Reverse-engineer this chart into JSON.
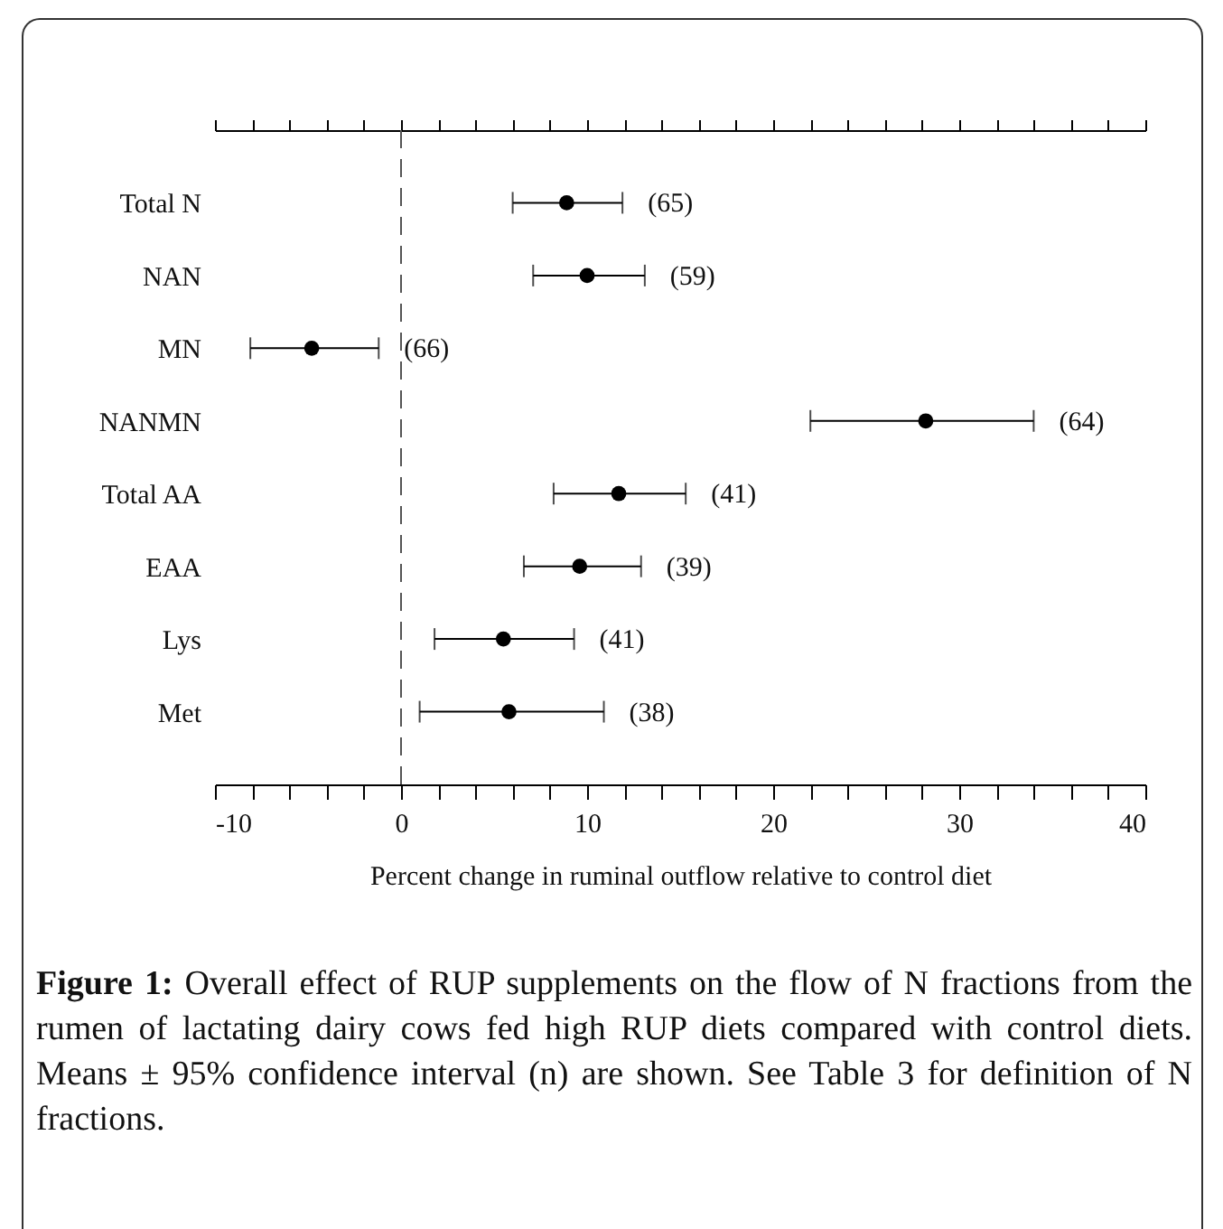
{
  "chart_data": {
    "type": "scatter",
    "categories": [
      "Total N",
      "NAN",
      "MN",
      "NANMN",
      "Total AA",
      "EAA",
      "Lys",
      "Met"
    ],
    "values": [
      8.9,
      10.0,
      -4.8,
      28.2,
      11.7,
      9.6,
      5.5,
      5.8
    ],
    "errors": [
      [
        6.0,
        11.9
      ],
      [
        7.1,
        13.1
      ],
      [
        -8.1,
        -1.2
      ],
      [
        22.0,
        34.0
      ],
      [
        8.2,
        15.3
      ],
      [
        6.6,
        12.9
      ],
      [
        1.8,
        9.3
      ],
      [
        1.0,
        10.9
      ]
    ],
    "orientation": "horizontal",
    "color": "#000000",
    "marker": "circle",
    "xlabel": "Percent change in ruminal outflow relative to control diet",
    "xlim": [
      -10,
      40
    ],
    "xticks": [
      -10,
      {
        "value": -8,
        "label": null
      },
      {
        "value": -6,
        "label": null
      },
      {
        "value": -4,
        "label": null
      },
      {
        "value": -2,
        "label": null
      },
      0,
      {
        "value": 2,
        "label": null
      },
      {
        "value": 4,
        "label": null
      },
      {
        "value": 6,
        "label": null
      },
      {
        "value": 8,
        "label": null
      },
      10,
      {
        "value": 12,
        "label": null
      },
      {
        "value": 14,
        "label": null
      },
      {
        "value": 16,
        "label": null
      },
      {
        "value": 18,
        "label": null
      },
      20,
      {
        "value": 22,
        "label": null
      },
      {
        "value": 24,
        "label": null
      },
      {
        "value": 26,
        "label": null
      },
      {
        "value": 28,
        "label": null
      },
      30,
      {
        "value": 32,
        "label": null
      },
      {
        "value": 34,
        "label": null
      },
      {
        "value": 36,
        "label": null
      },
      {
        "value": 38,
        "label": null
      },
      40
    ],
    "ref_lines": [
      {
        "axis": "x",
        "value": 0,
        "line_style": "dashed",
        "color": "#555555"
      }
    ],
    "grid": false,
    "annotations": [
      {
        "text": "(65)",
        "x": 11.9,
        "y": "Total N"
      },
      {
        "text": "(59)",
        "x": 13.1,
        "y": "NAN"
      },
      {
        "text": "(66)",
        "x": -1.2,
        "y": "MN"
      },
      {
        "text": "(64)",
        "x": 34.0,
        "y": "NANMN"
      },
      {
        "text": "(41)",
        "x": 15.3,
        "y": "Total AA"
      },
      {
        "text": "(39)",
        "x": 12.9,
        "y": "EAA"
      },
      {
        "text": "(41)",
        "x": 9.3,
        "y": "Lys"
      },
      {
        "text": "(38)",
        "x": 10.9,
        "y": "Met"
      },
      "Figure 1: Overall effect of RUP supplements on the flow of N fractions from the rumen of lactating dairy cows fed high RUP diets compared with control diets. Means ± 95% confidence interval (n) are shown. See Table 3 for definition of N fractions."
    ]
  }
}
